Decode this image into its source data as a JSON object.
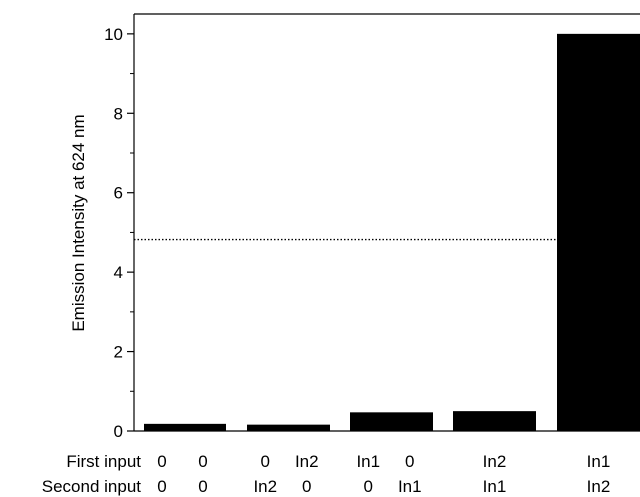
{
  "chart_data": {
    "type": "bar",
    "ylabel": "Emission Intensity at 624 nm",
    "ylim": [
      0,
      10.5
    ],
    "yticks": [
      0,
      2,
      4,
      6,
      8,
      10
    ],
    "threshold": 4.82,
    "row_labels": [
      "First input",
      "Second input"
    ],
    "bars": [
      {
        "value": 0.18,
        "groups": [
          {
            "first": "0",
            "second": "0"
          },
          {
            "first": "0",
            "second": "0"
          }
        ]
      },
      {
        "value": 0.16,
        "groups": [
          {
            "first": "0",
            "second": "In2"
          },
          {
            "first": "In2",
            "second": "0"
          }
        ]
      },
      {
        "value": 0.47,
        "groups": [
          {
            "first": "In1",
            "second": "0"
          },
          {
            "first": "0",
            "second": "In1"
          }
        ]
      },
      {
        "value": 0.5,
        "groups": [
          {
            "first": "In2",
            "second": "In1"
          }
        ]
      },
      {
        "value": 10.0,
        "groups": [
          {
            "first": "In1",
            "second": "In2"
          }
        ]
      }
    ]
  }
}
